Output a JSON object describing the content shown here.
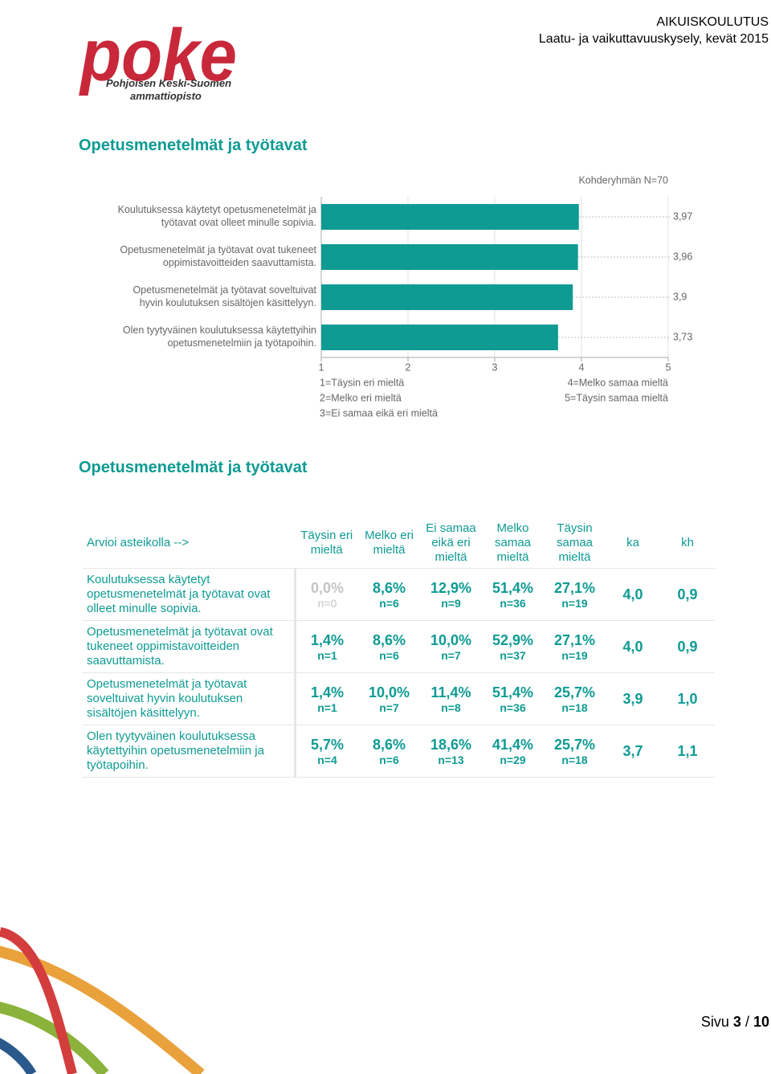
{
  "header": {
    "logo": "poke",
    "logo_sub1": "Pohjoisen Keski-Suomen",
    "logo_sub2": "ammattiopisto",
    "org": "AIKUISKOULUTUS",
    "survey": "Laatu- ja vaikuttavuuskysely, kevät 2015"
  },
  "section1": {
    "title": "Opetusmenetelmät ja työtavat"
  },
  "chart_data": {
    "type": "bar",
    "orientation": "horizontal",
    "note": "Kohderyhmän N=70",
    "categories": [
      [
        "Koulutuksessa käytetyt opetusmenetelmät ja",
        "työtavat ovat olleet minulle sopivia."
      ],
      [
        "Opetusmenetelmät ja työtavat ovat tukeneet",
        "oppimistavoitteiden saavuttamista."
      ],
      [
        "Opetusmenetelmät ja työtavat soveltuivat",
        "hyvin koulutuksen sisältöjen käsittelyyn."
      ],
      [
        "Olen tyytyväinen koulutuksessa käytettyihin",
        "opetusmenetelmiin ja työtapoihin."
      ]
    ],
    "values": [
      3.97,
      3.96,
      3.9,
      3.73
    ],
    "value_labels": [
      "3,97",
      "3,96",
      "3,9",
      "3,73"
    ],
    "color": "#0e9b93",
    "xlim": [
      1,
      5
    ],
    "xticks": [
      1,
      2,
      3,
      4,
      5
    ],
    "grid": true,
    "scale_legend": [
      "1=Täysin eri mieltä",
      "2=Melko eri mieltä",
      "3=Ei samaa eikä eri mieltä",
      "4=Melko samaa mieltä",
      "5=Täysin samaa mieltä"
    ]
  },
  "section2": {
    "title": "Opetusmenetelmät ja työtavat"
  },
  "table": {
    "header": [
      "Arvioi asteikolla -->",
      "Täysin eri mieltä",
      "Melko eri mieltä",
      "Ei samaa eikä eri mieltä",
      "Melko samaa mieltä",
      "Täysin samaa mieltä",
      "ka",
      "kh"
    ],
    "rows": [
      {
        "label": "Koulutuksessa käytetyt opetusmenetelmät ja työtavat ovat olleet minulle sopivia.",
        "cells": [
          {
            "pct": "0,0%",
            "n": "n=0"
          },
          {
            "pct": "8,6%",
            "n": "n=6"
          },
          {
            "pct": "12,9%",
            "n": "n=9"
          },
          {
            "pct": "51,4%",
            "n": "n=36"
          },
          {
            "pct": "27,1%",
            "n": "n=19"
          }
        ],
        "ka": "4,0",
        "kh": "0,9"
      },
      {
        "label": "Opetusmenetelmät ja työtavat ovat tukeneet oppimistavoitteiden saavuttamista.",
        "cells": [
          {
            "pct": "1,4%",
            "n": "n=1"
          },
          {
            "pct": "8,6%",
            "n": "n=6"
          },
          {
            "pct": "10,0%",
            "n": "n=7"
          },
          {
            "pct": "52,9%",
            "n": "n=37"
          },
          {
            "pct": "27,1%",
            "n": "n=19"
          }
        ],
        "ka": "4,0",
        "kh": "0,9"
      },
      {
        "label": "Opetusmenetelmät ja työtavat soveltuivat hyvin koulutuksen sisältöjen käsittelyyn.",
        "cells": [
          {
            "pct": "1,4%",
            "n": "n=1"
          },
          {
            "pct": "10,0%",
            "n": "n=7"
          },
          {
            "pct": "11,4%",
            "n": "n=8"
          },
          {
            "pct": "51,4%",
            "n": "n=36"
          },
          {
            "pct": "25,7%",
            "n": "n=18"
          }
        ],
        "ka": "3,9",
        "kh": "1,0"
      },
      {
        "label": "Olen tyytyväinen koulutuksessa käytettyihin opetusmenetelmiin ja työtapoihin.",
        "cells": [
          {
            "pct": "5,7%",
            "n": "n=4"
          },
          {
            "pct": "8,6%",
            "n": "n=6"
          },
          {
            "pct": "18,6%",
            "n": "n=13"
          },
          {
            "pct": "41,4%",
            "n": "n=29"
          },
          {
            "pct": "25,7%",
            "n": "n=18"
          }
        ],
        "ka": "3,7",
        "kh": "1,1"
      }
    ]
  },
  "footer": {
    "prefix": "Sivu",
    "current": "3",
    "separator": "/",
    "total": "10"
  }
}
